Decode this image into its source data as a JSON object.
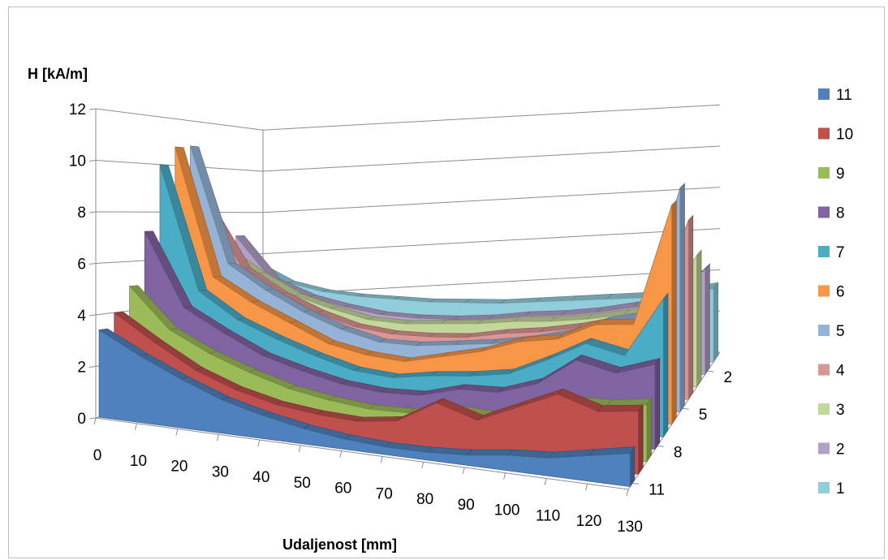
{
  "chart_data": {
    "type": "area",
    "subtype": "3d-area",
    "ylabel": "H [kA/m]",
    "xlabel": "Udaljenost [mm]",
    "ylim": [
      0,
      12
    ],
    "yticks": [
      "0",
      "2",
      "4",
      "6",
      "8",
      "10",
      "12"
    ],
    "categories": [
      "0",
      "10",
      "20",
      "30",
      "40",
      "50",
      "60",
      "70",
      "80",
      "90",
      "100",
      "110",
      "120",
      "130"
    ],
    "depth_ticks": [
      "2",
      "5",
      "8",
      "11"
    ],
    "legend_position": "right",
    "grid": true,
    "series": [
      {
        "name": "11",
        "color": "#4f81bd",
        "values": [
          3.4,
          2.6,
          1.9,
          1.3,
          0.9,
          0.6,
          0.4,
          0.3,
          0.3,
          0.4,
          0.6,
          0.7,
          1.0,
          1.3
        ]
      },
      {
        "name": "10",
        "color": "#c0504d",
        "values": [
          4.0,
          3.0,
          2.1,
          1.5,
          1.1,
          0.9,
          0.8,
          1.0,
          1.9,
          1.4,
          2.1,
          2.8,
          2.3,
          2.5
        ]
      },
      {
        "name": "9",
        "color": "#9bbb59",
        "values": [
          5.0,
          3.4,
          2.6,
          2.0,
          1.5,
          1.2,
          1.0,
          1.0,
          1.3,
          1.2,
          1.6,
          2.1,
          2.1,
          2.3
        ]
      },
      {
        "name": "8",
        "color": "#8064a2",
        "values": [
          7.2,
          4.2,
          3.3,
          2.5,
          2.0,
          1.6,
          1.4,
          1.4,
          1.8,
          1.8,
          2.3,
          3.4,
          3.0,
          3.5
        ]
      },
      {
        "name": "7",
        "color": "#4bacc6",
        "values": [
          10.0,
          4.8,
          3.7,
          3.0,
          2.4,
          1.9,
          1.7,
          1.9,
          2.0,
          2.2,
          2.9,
          3.7,
          3.3,
          5.8
        ]
      },
      {
        "name": "6",
        "color": "#f79646",
        "values": [
          10.8,
          5.3,
          4.3,
          3.5,
          2.7,
          2.3,
          2.1,
          2.4,
          2.7,
          3.2,
          3.4,
          4.1,
          4.2,
          9.4
        ]
      },
      {
        "name": "5",
        "color": "#95b3d7",
        "values": [
          10.9,
          5.8,
          4.7,
          3.8,
          3.1,
          2.6,
          2.5,
          2.6,
          2.7,
          2.9,
          3.2,
          3.8,
          4.1,
          9.8
        ]
      },
      {
        "name": "4",
        "color": "#da9694",
        "values": [
          8.3,
          5.5,
          4.4,
          3.6,
          3.0,
          2.7,
          2.6,
          2.6,
          2.8,
          2.9,
          3.1,
          3.4,
          3.6,
          8.0
        ]
      },
      {
        "name": "3",
        "color": "#c4d79b",
        "values": [
          6.4,
          5.2,
          4.2,
          3.6,
          3.1,
          2.9,
          2.9,
          2.9,
          3.0,
          3.0,
          3.1,
          3.3,
          3.5,
          6.0
        ]
      },
      {
        "name": "2",
        "color": "#b1a0c7",
        "values": [
          6.9,
          4.8,
          4.0,
          3.5,
          3.1,
          2.9,
          2.8,
          2.8,
          2.9,
          2.9,
          3.0,
          3.2,
          3.3,
          4.9
        ]
      },
      {
        "name": "1",
        "color": "#92cddc",
        "values": [
          5.6,
          4.6,
          4.1,
          3.8,
          3.6,
          3.4,
          3.3,
          3.2,
          3.2,
          3.2,
          3.2,
          3.2,
          3.3,
          3.5
        ]
      }
    ]
  }
}
